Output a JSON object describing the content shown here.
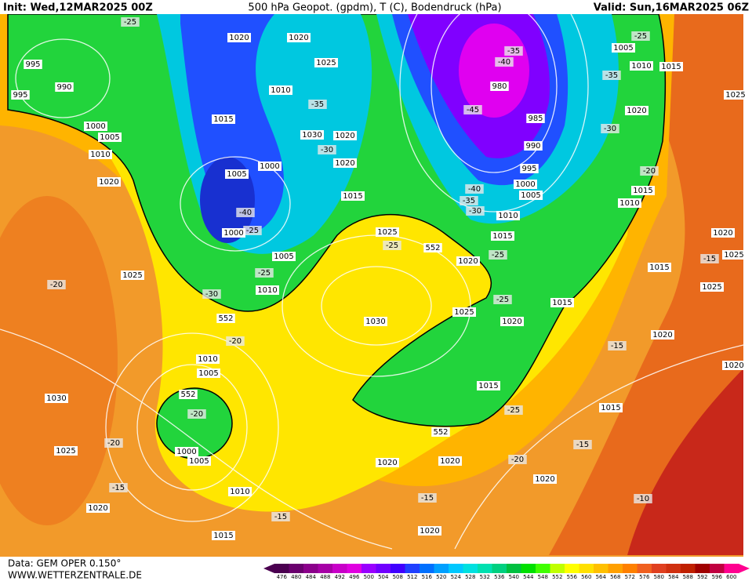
{
  "header": {
    "init": "Init: Wed,12MAR2025 00Z",
    "title": "500 hPa Geopot. (gpdm), T (C), Bodendruck (hPa)",
    "valid": "Valid: Sun,16MAR2025 06Z"
  },
  "footer": {
    "data": "Data: GEM OPER 0.150°",
    "site": "WWW.WETTERZENTRALE.DE"
  },
  "colorbar": {
    "labels": [
      476,
      480,
      484,
      488,
      492,
      496,
      500,
      504,
      508,
      512,
      516,
      520,
      524,
      528,
      532,
      536,
      540,
      544,
      548,
      552,
      556,
      560,
      564,
      568,
      572,
      576,
      580,
      584,
      588,
      592,
      596,
      600
    ],
    "colors": [
      "#4b0050",
      "#6a006e",
      "#8b008b",
      "#a600a6",
      "#c800c8",
      "#e000e0",
      "#9900ff",
      "#7000ff",
      "#4000ff",
      "#2040ff",
      "#0070ff",
      "#00a0ff",
      "#00c8ff",
      "#00e0e0",
      "#00e0b0",
      "#00d080",
      "#00c040",
      "#00e000",
      "#40ff00",
      "#c0ff00",
      "#ffff00",
      "#ffe000",
      "#ffc000",
      "#ffa000",
      "#ff8000",
      "#f06020",
      "#e04020",
      "#d03010",
      "#c02000",
      "#a00000",
      "#c00040",
      "#ff0090"
    ]
  },
  "map_labels": [
    1020,
    1020,
    995,
    990,
    995,
    1025,
    1010,
    -35,
    1015,
    1000,
    1005,
    1010,
    1030,
    1020,
    -30,
    1020,
    1000,
    1005,
    1020,
    1015,
    -40,
    -25,
    1000,
    1025,
    -25,
    1005,
    1025,
    -25,
    1010,
    -20,
    -30,
    552,
    1030,
    -20,
    1010,
    1005,
    552,
    -20,
    1030,
    -20,
    1025,
    1000,
    1005,
    1010,
    -15,
    1020,
    -15,
    1015,
    1020,
    1020,
    552,
    -20,
    1020,
    -15,
    1020,
    -15,
    1015,
    -10,
    1015,
    -25,
    1020,
    1025,
    -25,
    1015,
    1020,
    -25,
    1015,
    552,
    -30,
    -35,
    -40,
    1010,
    1005,
    1000,
    995,
    990,
    985,
    -45,
    980,
    -40,
    -35,
    1005,
    -25,
    1010,
    -35,
    1015,
    1025,
    1020,
    -30,
    -20,
    1015,
    1010,
    1020,
    1025,
    -15,
    1015,
    1025,
    1020,
    -15,
    1020,
    -25
  ]
}
